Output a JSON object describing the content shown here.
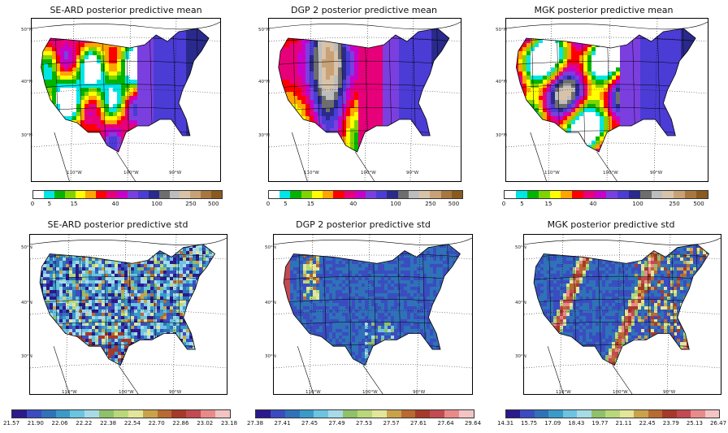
{
  "panels": [
    {
      "title": "SE-ARD posterior predictive mean",
      "lat_labels": [
        "50°N",
        "40°N",
        "30°N"
      ],
      "lon_labels": [
        "110°W",
        "100°W",
        "90°W"
      ],
      "colorbar_ticks": [
        "0",
        "5",
        "15",
        "40",
        "100",
        "250",
        "500"
      ],
      "colorbar_colors": [
        "#ffffff",
        "#00e6e6",
        "#00b400",
        "#7fd400",
        "#ffff00",
        "#ffa500",
        "#ff0000",
        "#e6007a",
        "#c800c8",
        "#7b3fe0",
        "#4b3cd6",
        "#2a2a8c",
        "#6e6e6e",
        "#bdbdbd",
        "#d9c3a8",
        "#c8a276",
        "#a8773f",
        "#8a5a1e"
      ],
      "field": "mean-seard"
    },
    {
      "title": "DGP 2 posterior predictive mean",
      "lat_labels": [
        "50°N",
        "40°N",
        "30°N"
      ],
      "lon_labels": [
        "110°W",
        "100°W",
        "90°W"
      ],
      "colorbar_ticks": [
        "0",
        "5",
        "15",
        "40",
        "100",
        "250",
        "500"
      ],
      "colorbar_colors": [
        "#ffffff",
        "#00e6e6",
        "#00b400",
        "#7fd400",
        "#ffff00",
        "#ffa500",
        "#ff0000",
        "#e6007a",
        "#c800c8",
        "#7b3fe0",
        "#4b3cd6",
        "#2a2a8c",
        "#6e6e6e",
        "#bdbdbd",
        "#d9c3a8",
        "#c8a276",
        "#a8773f",
        "#8a5a1e"
      ],
      "field": "mean-dgp"
    },
    {
      "title": "MGK posterior predictive mean",
      "lat_labels": [
        "50°N",
        "40°N",
        "30°N"
      ],
      "lon_labels": [
        "110°W",
        "100°W",
        "90°W"
      ],
      "colorbar_ticks": [
        "0",
        "5",
        "15",
        "40",
        "100",
        "250",
        "500"
      ],
      "colorbar_colors": [
        "#ffffff",
        "#00e6e6",
        "#00b400",
        "#7fd400",
        "#ffff00",
        "#ffa500",
        "#ff0000",
        "#e6007a",
        "#c800c8",
        "#7b3fe0",
        "#4b3cd6",
        "#2a2a8c",
        "#6e6e6e",
        "#bdbdbd",
        "#d9c3a8",
        "#c8a276",
        "#a8773f",
        "#8a5a1e"
      ],
      "field": "mean-mgk"
    },
    {
      "title": "SE-ARD posterior predictive std",
      "lat_labels": [
        "50°N",
        "40°N",
        "30°N"
      ],
      "lon_labels": [
        "110°W",
        "100°W",
        "90°W"
      ],
      "colorbar_ticks": [
        "21.57",
        "21.90",
        "22.06",
        "22.22",
        "22.38",
        "22.54",
        "22.70",
        "22.86",
        "23.02",
        "23.18"
      ],
      "colorbar_colors": [
        "#2a1a8c",
        "#3b4cc0",
        "#2f72b8",
        "#3a9bc8",
        "#6cc4e0",
        "#a7dbe8",
        "#8fc06a",
        "#b9d87a",
        "#e3e69a",
        "#c9a24a",
        "#b86a30",
        "#a63a2a",
        "#c24a50",
        "#e88a8a",
        "#f3c4c4"
      ],
      "field": "std-seard"
    },
    {
      "title": "DGP 2 posterior predictive std",
      "lat_labels": [
        "50°N",
        "40°N",
        "30°N"
      ],
      "lon_labels": [
        "110°W",
        "100°W",
        "90°W"
      ],
      "colorbar_ticks": [
        "27.38",
        "27.41",
        "27.45",
        "27.49",
        "27.53",
        "27.57",
        "27.61",
        "27.64",
        "29.64"
      ],
      "colorbar_colors": [
        "#2a1a8c",
        "#3b4cc0",
        "#2f72b8",
        "#3a9bc8",
        "#6cc4e0",
        "#a7dbe8",
        "#8fc06a",
        "#b9d87a",
        "#e3e69a",
        "#c9a24a",
        "#b86a30",
        "#a63a2a",
        "#c24a50",
        "#e88a8a",
        "#f3c4c4"
      ],
      "field": "std-dgp"
    },
    {
      "title": "MGK posterior predictive std",
      "lat_labels": [
        "50°N",
        "40°N",
        "30°N"
      ],
      "lon_labels": [
        "110°W",
        "100°W",
        "90°W"
      ],
      "colorbar_ticks": [
        "14.31",
        "15.75",
        "17.09",
        "18.43",
        "19.77",
        "21.11",
        "22.45",
        "23.79",
        "25.13",
        "26.47"
      ],
      "colorbar_colors": [
        "#2a1a8c",
        "#3b4cc0",
        "#2f72b8",
        "#3a9bc8",
        "#6cc4e0",
        "#a7dbe8",
        "#8fc06a",
        "#b9d87a",
        "#e3e69a",
        "#c9a24a",
        "#b86a30",
        "#a63a2a",
        "#c24a50",
        "#e88a8a",
        "#f3c4c4"
      ],
      "field": "std-mgk"
    }
  ]
}
